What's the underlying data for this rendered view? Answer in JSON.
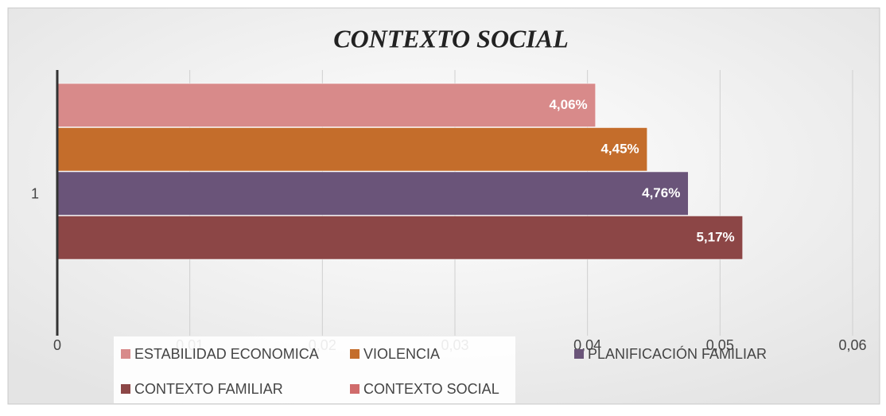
{
  "chart_data": {
    "type": "hbar",
    "title": "CONTEXTO SOCIAL",
    "categories": [
      "1"
    ],
    "series": [
      {
        "name": "ESTABILIDAD ECONOMICA",
        "color": "#d88a8a",
        "values": [
          0.0406
        ],
        "value_labels": [
          "4,06%"
        ]
      },
      {
        "name": "VIOLENCIA",
        "color": "#c46d2b",
        "values": [
          0.0445
        ],
        "value_labels": [
          "4,45%"
        ]
      },
      {
        "name": "PLANIFICACIÓN FAMILIAR",
        "color": "#6a5479",
        "values": [
          0.0476
        ],
        "value_labels": [
          "4,76%"
        ]
      },
      {
        "name": "CONTEXTO FAMILIAR",
        "color": "#8c4646",
        "values": [
          0.0517
        ],
        "value_labels": [
          "5,17%"
        ]
      },
      {
        "name": "CONTEXTO SOCIAL",
        "color": "#d06b6b",
        "values": [
          null
        ]
      }
    ],
    "xlim": [
      0,
      0.06
    ],
    "xticks": [
      0,
      {
        "value": 0.01,
        "label": "0,01"
      },
      {
        "value": 0.02,
        "label": "0,02"
      },
      {
        "value": 0.03,
        "label": "0,03"
      },
      {
        "value": 0.04,
        "label": "0,04"
      },
      {
        "value": 0.05,
        "label": "0,05"
      },
      {
        "value": 0.06,
        "label": "0,06"
      }
    ],
    "grid": true,
    "legend": "bottom"
  }
}
